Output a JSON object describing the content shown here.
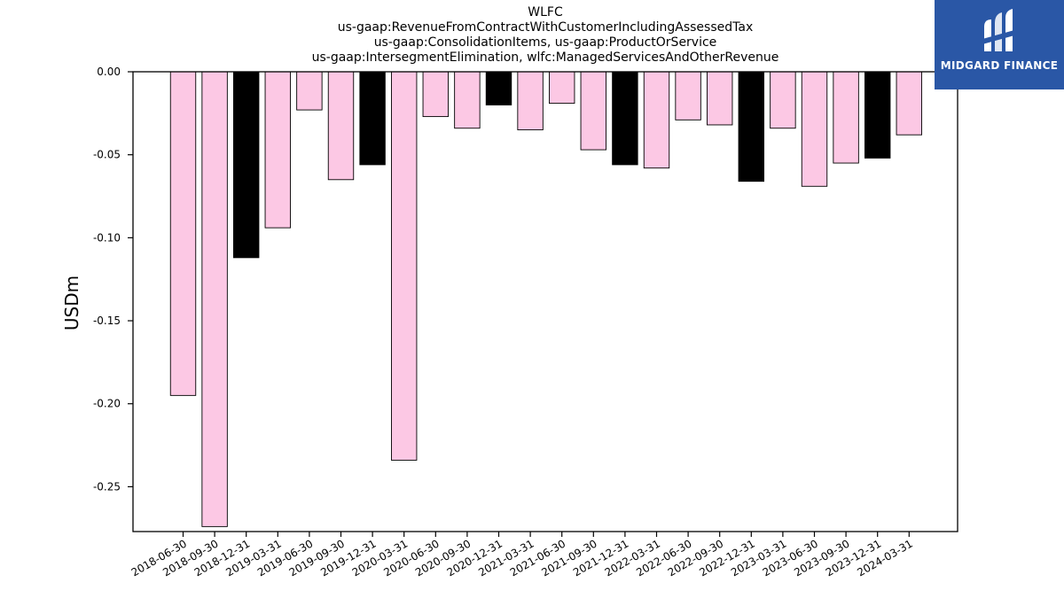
{
  "chart_data": {
    "type": "bar",
    "title_lines": [
      "WLFC",
      "us-gaap:RevenueFromContractWithCustomerIncludingAssessedTax",
      "us-gaap:ConsolidationItems, us-gaap:ProductOrService",
      "us-gaap:IntersegmentElimination, wlfc:ManagedServicesAndOtherRevenue"
    ],
    "xlabel": "",
    "ylabel": "USDm",
    "ylim": [
      -0.277,
      0.0
    ],
    "yticks": [
      0.0,
      -0.05,
      -0.1,
      -0.15,
      -0.2,
      -0.25
    ],
    "ytick_labels": [
      "0.00",
      "-0.05",
      "-0.10",
      "-0.15",
      "-0.20",
      "-0.25"
    ],
    "grid": false,
    "categories": [
      "2018-06-30",
      "2018-09-30",
      "2018-12-31",
      "2019-03-31",
      "2019-06-30",
      "2019-09-30",
      "2019-12-31",
      "2020-03-31",
      "2020-06-30",
      "2020-09-30",
      "2020-12-31",
      "2021-03-31",
      "2021-06-30",
      "2021-09-30",
      "2021-12-31",
      "2022-03-31",
      "2022-06-30",
      "2022-09-30",
      "2022-12-31",
      "2023-03-31",
      "2023-06-30",
      "2023-09-30",
      "2023-12-31",
      "2024-03-31"
    ],
    "values": [
      -0.195,
      -0.274,
      -0.112,
      -0.094,
      -0.023,
      -0.065,
      -0.056,
      -0.234,
      -0.027,
      -0.034,
      -0.02,
      -0.035,
      -0.019,
      -0.047,
      -0.056,
      -0.058,
      -0.029,
      -0.032,
      -0.066,
      -0.034,
      -0.069,
      -0.055,
      -0.052,
      -0.038
    ],
    "colors": [
      "#fcc8e4",
      "#fcc8e4",
      "#000000",
      "#fcc8e4",
      "#fcc8e4",
      "#fcc8e4",
      "#000000",
      "#fcc8e4",
      "#fcc8e4",
      "#fcc8e4",
      "#000000",
      "#fcc8e4",
      "#fcc8e4",
      "#fcc8e4",
      "#000000",
      "#fcc8e4",
      "#fcc8e4",
      "#fcc8e4",
      "#000000",
      "#fcc8e4",
      "#fcc8e4",
      "#fcc8e4",
      "#000000",
      "#fcc8e4"
    ]
  },
  "logo": {
    "text": "MIDGARD FINANCE",
    "background": "#2a57a6"
  }
}
